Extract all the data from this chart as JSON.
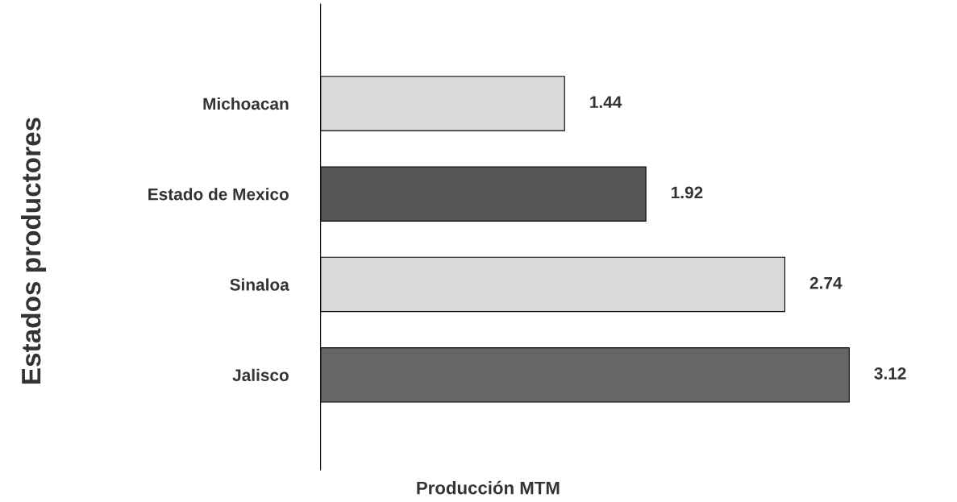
{
  "chart_data": {
    "type": "bar",
    "orientation": "horizontal",
    "xlabel": "Producción MTM",
    "ylabel": "Estados productores",
    "categories": [
      "Michoacan",
      "Estado de Mexico",
      "Sinaloa",
      "Jalisco"
    ],
    "values": [
      1.44,
      1.92,
      2.74,
      3.12
    ],
    "colors": [
      "#d9d9d9",
      "#555555",
      "#d9d9d9",
      "#666666"
    ],
    "tick_labels": "y",
    "data_labels": true,
    "grid": false,
    "legend": false
  }
}
